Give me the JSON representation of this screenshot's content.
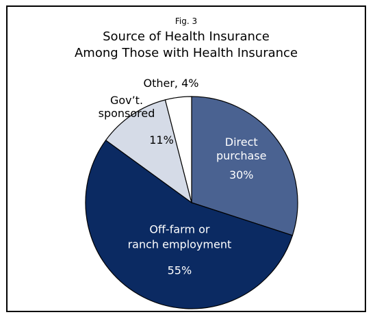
{
  "figure": {
    "label": "Fig. 3",
    "title_lines": [
      "Source of Health Insurance",
      "Among Those with Health Insurance"
    ]
  },
  "chart_data": {
    "type": "pie",
    "slices": [
      {
        "label_lines": [
          "Direct",
          "purchase"
        ],
        "value_text": "30%",
        "value": 30,
        "color": "#4a6291",
        "text_color": "#ffffff"
      },
      {
        "label_lines": [
          "Off-farm  or",
          "ranch employment"
        ],
        "value_text": "55%",
        "value": 55,
        "color": "#0b2a62",
        "text_color": "#ffffff"
      },
      {
        "label_lines": [
          "Gov’t.",
          "sponsored"
        ],
        "value_text": "11%",
        "value": 11,
        "color": "#d5dbe7",
        "text_color": "#000000"
      },
      {
        "label_lines": [
          "Other, 4%"
        ],
        "value_text": "",
        "value": 4,
        "color": "#ffffff",
        "text_color": "#000000"
      }
    ],
    "start_angle_deg": 0,
    "direction": "clockwise",
    "edge_color": "#000000"
  }
}
